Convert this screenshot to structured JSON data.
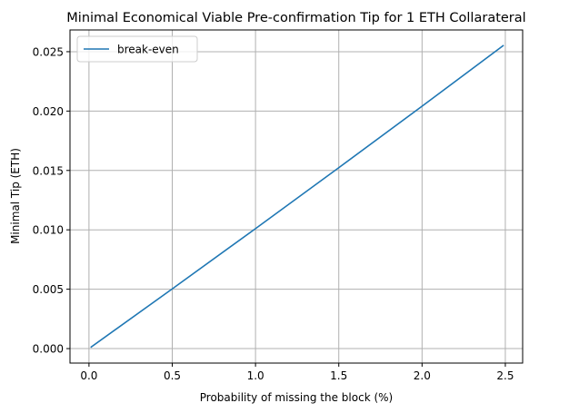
{
  "chart_data": {
    "type": "line",
    "title": "Minimal Economical Viable Pre-confirmation Tip for 1 ETH Collarateral",
    "xlabel": "Probability of missing the block (%)",
    "ylabel": "Minimal Tip (ETH)",
    "xlim": [
      -0.114,
      2.604
    ],
    "ylim": [
      -0.00122,
      0.02683
    ],
    "grid": true,
    "legend_position": "upper left",
    "x_ticks": [
      0.0,
      0.5,
      1.0,
      1.5,
      2.0,
      2.5
    ],
    "x_tick_labels": [
      "0.0",
      "0.5",
      "1.0",
      "1.5",
      "2.0",
      "2.5"
    ],
    "y_ticks": [
      0.0,
      0.005,
      0.01,
      0.015,
      0.02,
      0.025
    ],
    "y_tick_labels": [
      "0.000",
      "0.005",
      "0.010",
      "0.015",
      "0.020",
      "0.025"
    ],
    "series": [
      {
        "name": "break-even",
        "color": "#1f77b4",
        "x": [
          0.01,
          0.5,
          1.0,
          1.5,
          2.0,
          2.49
        ],
        "y": [
          0.0001,
          0.00503,
          0.0101,
          0.01523,
          0.02041,
          0.02554
        ]
      }
    ]
  }
}
